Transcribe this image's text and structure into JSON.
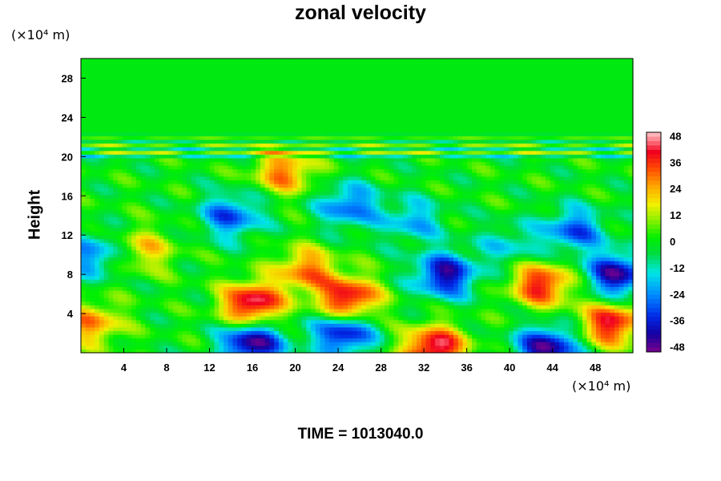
{
  "chart_data": {
    "type": "heatmap",
    "title": "zonal velocity",
    "xlabel": "",
    "ylabel": "Height",
    "x_unit": "(×10⁴ m)",
    "y_unit": "(×10⁴ m)",
    "footer": "TIME = 1013040.0",
    "xlim": [
      0,
      51.5
    ],
    "ylim": [
      0,
      30
    ],
    "x_ticks": [
      4,
      8,
      12,
      16,
      20,
      24,
      28,
      32,
      36,
      40,
      44,
      48
    ],
    "y_ticks": [
      4,
      8,
      12,
      16,
      20,
      24,
      28
    ],
    "colorbar": {
      "ticks": [
        48,
        36,
        24,
        12,
        0,
        -12,
        -24,
        -36,
        -48
      ],
      "min": -50,
      "max": 50
    },
    "field_features": [
      {
        "x": 16,
        "y": 5,
        "value": 48
      },
      {
        "x": 25,
        "y": 5.5,
        "value": 45
      },
      {
        "x": 21,
        "y": 8.5,
        "value": 30
      },
      {
        "x": 43,
        "y": 7,
        "value": 40
      },
      {
        "x": 49.5,
        "y": 3,
        "value": 42
      },
      {
        "x": 33,
        "y": 0.5,
        "value": 48
      },
      {
        "x": 1,
        "y": 3,
        "value": 28
      },
      {
        "x": 16,
        "y": 1,
        "value": -48
      },
      {
        "x": 24.5,
        "y": 2,
        "value": -40
      },
      {
        "x": 43.5,
        "y": 0.5,
        "value": -46
      },
      {
        "x": 34,
        "y": 8,
        "value": -42
      },
      {
        "x": 50,
        "y": 8,
        "value": -44
      },
      {
        "x": 14,
        "y": 14,
        "value": -30
      },
      {
        "x": 25,
        "y": 15,
        "value": -28
      },
      {
        "x": 19,
        "y": 18.5,
        "value": 30
      },
      {
        "x": 6,
        "y": 10.5,
        "value": 20
      },
      {
        "x": 40,
        "y": 11,
        "value": -15
      },
      {
        "x": 46,
        "y": 12.5,
        "value": -30
      },
      {
        "x": 1,
        "y": 10,
        "value": -25
      },
      {
        "x": 31,
        "y": 13.5,
        "value": -20
      }
    ]
  }
}
